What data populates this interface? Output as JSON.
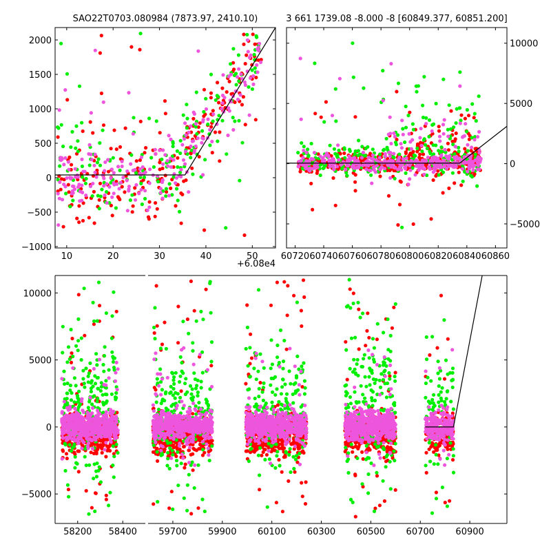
{
  "chart_data": [
    {
      "type": "scatter",
      "panel": "top-left",
      "title": "SAO22T0703.080984 (7873.97, 2410.10)",
      "xlim": [
        7.5,
        55
      ],
      "ylim": [
        -1020,
        2180
      ],
      "xticks": [
        10,
        20,
        30,
        40,
        50
      ],
      "yticks": [
        -1000,
        -500,
        0,
        500,
        1000,
        1500,
        2000
      ],
      "xtick_labels": [
        "10",
        "20",
        "30",
        "40",
        "50"
      ],
      "ytick_labels": [
        "−1000",
        "−500",
        "0",
        "500",
        "1000",
        "1500",
        "2000"
      ],
      "x_offset_label": "+6.08e4",
      "ytick_side": "left",
      "model_line": {
        "x": [
          7.5,
          35.5,
          55
        ],
        "y": [
          40,
          40,
          2180
        ]
      },
      "series": [
        {
          "name": "red",
          "color": "#ff0000",
          "count": 230,
          "clusters": [
            {
              "x": [
                8,
                35
              ],
              "y_center": -50,
              "y_spread": 330,
              "weight": 0.55
            },
            {
              "x": [
                35,
                52
              ],
              "y_start": 300,
              "y_end": 1900,
              "y_spread": 300,
              "weight": 0.35
            },
            {
              "x": [
                8,
                52
              ],
              "y": [
                -900,
                2100
              ],
              "uniform": true,
              "weight": 0.1
            }
          ]
        },
        {
          "name": "green",
          "color": "#00ee00",
          "count": 170,
          "clusters": [
            {
              "x": [
                8,
                35
              ],
              "y_center": 120,
              "y_spread": 350,
              "weight": 0.55
            },
            {
              "x": [
                35,
                52
              ],
              "y_start": 400,
              "y_end": 1800,
              "y_spread": 350,
              "weight": 0.35
            },
            {
              "x": [
                8,
                52
              ],
              "y": [
                -900,
                2100
              ],
              "uniform": true,
              "weight": 0.1
            }
          ]
        },
        {
          "name": "magenta",
          "color": "#ee55dd",
          "count": 210,
          "clusters": [
            {
              "x": [
                8,
                35
              ],
              "y_center": 40,
              "y_spread": 220,
              "weight": 0.6
            },
            {
              "x": [
                35,
                52
              ],
              "y_start": 300,
              "y_end": 1700,
              "y_spread": 250,
              "weight": 0.32
            },
            {
              "x": [
                8,
                52
              ],
              "y": [
                -900,
                2100
              ],
              "uniform": true,
              "weight": 0.08
            }
          ]
        }
      ]
    },
    {
      "type": "scatter",
      "panel": "top-right",
      "title": "3 661 1739.08 -8.000 -8 [60849.377, 60851.200]",
      "xlim": [
        60714,
        60868
      ],
      "ylim": [
        -7000,
        11300
      ],
      "xticks": [
        60720,
        60740,
        60760,
        60780,
        60800,
        60820,
        60840,
        60860
      ],
      "yticks": [
        -5000,
        0,
        5000,
        10000
      ],
      "xtick_labels": [
        "60720",
        "60740",
        "60760",
        "60780",
        "60800",
        "60820",
        "60840",
        "60860"
      ],
      "ytick_labels": [
        "−5000",
        "0",
        "5000",
        "10000"
      ],
      "ytick_side": "right",
      "model_line": {
        "x": [
          60714,
          60835,
          60868
        ],
        "y": [
          40,
          40,
          3100
        ]
      },
      "series": [
        {
          "name": "red",
          "color": "#ff0000",
          "count": 420,
          "clusters": [
            {
              "x": [
                60722,
                60850
              ],
              "y_center": 0,
              "y_spread": 450,
              "weight": 0.75
            },
            {
              "x": [
                60785,
                60850
              ],
              "y_center": 1200,
              "y_spread": 1500,
              "weight": 0.2
            },
            {
              "x": [
                60722,
                60850
              ],
              "y": [
                -5500,
                7000
              ],
              "uniform": true,
              "weight": 0.05
            }
          ]
        },
        {
          "name": "green",
          "color": "#00ee00",
          "count": 260,
          "clusters": [
            {
              "x": [
                60722,
                60850
              ],
              "y_center": 400,
              "y_spread": 700,
              "weight": 0.7
            },
            {
              "x": [
                60780,
                60850
              ],
              "y_center": 2500,
              "y_spread": 2200,
              "weight": 0.22
            },
            {
              "x": [
                60722,
                60850
              ],
              "y": [
                -5500,
                10000
              ],
              "uniform": true,
              "weight": 0.08
            }
          ]
        },
        {
          "name": "magenta",
          "color": "#ee55dd",
          "count": 380,
          "clusters": [
            {
              "x": [
                60722,
                60850
              ],
              "y_center": 50,
              "y_spread": 350,
              "weight": 0.8
            },
            {
              "x": [
                60785,
                60850
              ],
              "y_center": 1200,
              "y_spread": 1300,
              "weight": 0.17
            },
            {
              "x": [
                60722,
                60850
              ],
              "y": [
                -3000,
                9000
              ],
              "uniform": true,
              "weight": 0.03
            }
          ]
        }
      ]
    },
    {
      "type": "scatter",
      "panel": "bottom",
      "title": "",
      "broken_x_axis": true,
      "segments": [
        {
          "xlim": [
            58100,
            58500
          ],
          "xticks": [
            58200,
            58400
          ],
          "xtick_labels": [
            "58200",
            "58400"
          ]
        },
        {
          "xlim": [
            59600,
            61050
          ],
          "xticks": [
            59700,
            59900,
            60100,
            60300,
            60500,
            60700,
            60900
          ],
          "xtick_labels": [
            "59700",
            "59900",
            "60100",
            "60300",
            "60500",
            "60700",
            "60900"
          ]
        }
      ],
      "ylim": [
        -7200,
        11300
      ],
      "yticks": [
        -5000,
        0,
        5000,
        10000
      ],
      "ytick_labels": [
        "−5000",
        "0",
        "5000",
        "10000"
      ],
      "ytick_side": "left",
      "model_line": {
        "x": [
          60720,
          60834,
          60950
        ],
        "y": [
          0,
          0,
          11300
        ]
      },
      "observing_seasons": [
        [
          58130,
          58380
        ],
        [
          59620,
          59860
        ],
        [
          59995,
          60240
        ],
        [
          60395,
          60600
        ],
        [
          60720,
          60835
        ]
      ],
      "series": [
        {
          "name": "red",
          "color": "#ff0000",
          "count_per_season": 420,
          "y_center": -600,
          "y_spread": 700,
          "outlier_range": [
            -7000,
            11000
          ],
          "outlier_fraction": 0.08
        },
        {
          "name": "green",
          "color": "#00ee00",
          "count_per_season": 220,
          "y_center": 1200,
          "y_spread": 2200,
          "outlier_range": [
            -6500,
            11000
          ],
          "outlier_fraction": 0.15
        },
        {
          "name": "magenta",
          "color": "#ee55dd",
          "count_per_season": 520,
          "y_center": 100,
          "y_spread": 550,
          "outlier_range": [
            -3000,
            6000
          ],
          "outlier_fraction": 0.04
        }
      ]
    }
  ]
}
